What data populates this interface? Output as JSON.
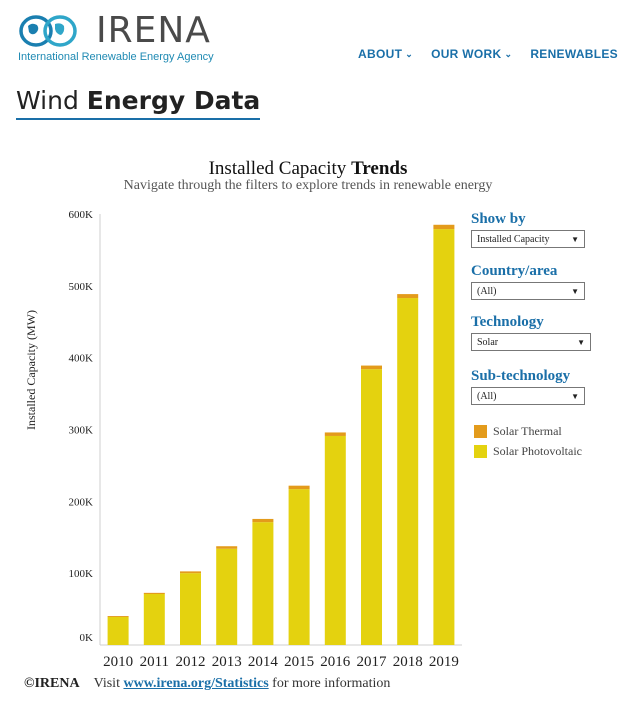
{
  "header": {
    "logo_word": "IRENA",
    "logo_subtitle": "International Renewable Energy Agency",
    "nav": [
      {
        "label": "ABOUT",
        "has_menu": true
      },
      {
        "label": "OUR WORK",
        "has_menu": true
      },
      {
        "label": "RENEWABLES",
        "has_menu": false
      }
    ]
  },
  "page": {
    "title_light": "Wind ",
    "title_bold": "Energy Data"
  },
  "filters": [
    {
      "label": "Show by",
      "value": "Installed Capacity"
    },
    {
      "label": "Country/area",
      "value": "(All)"
    },
    {
      "label": "Technology",
      "value": "Solar"
    },
    {
      "label": "Sub-technology",
      "value": "(All)"
    }
  ],
  "footer": {
    "copyright": "©IRENA",
    "text_before": "Visit ",
    "link": "www.irena.org/Statistics",
    "text_after": " for more information"
  },
  "colors": {
    "solar_thermal": "#e39b1b",
    "solar_photovoltaic": "#e4d20f",
    "accent": "#1a6fa8"
  },
  "chart_data": {
    "type": "bar",
    "stacked": true,
    "title_light": "Installed Capacity ",
    "title_bold": "Trends",
    "subtitle": "Navigate through the filters to explore trends in renewable energy",
    "ylabel": "Installed Capacity (MW)",
    "xlabel": "",
    "ylim": [
      0,
      600000
    ],
    "yticks": [
      0,
      100000,
      200000,
      300000,
      400000,
      500000,
      600000
    ],
    "ytick_labels": [
      "0K",
      "100K",
      "200K",
      "300K",
      "400K",
      "500K",
      "600K"
    ],
    "grid": false,
    "legend_position": "right",
    "categories": [
      "2010",
      "2011",
      "2012",
      "2013",
      "2014",
      "2015",
      "2016",
      "2017",
      "2018",
      "2019"
    ],
    "series": [
      {
        "name": "Solar Photovoltaic",
        "color": "#e4d20f",
        "values": [
          39000,
          71000,
          100000,
          134000,
          171000,
          217000,
          291000,
          384000,
          483000,
          579000
        ]
      },
      {
        "name": "Solar Thermal",
        "color": "#e39b1b",
        "values": [
          1300,
          1600,
          2500,
          3500,
          4500,
          4800,
          4900,
          5000,
          5500,
          6000
        ]
      }
    ]
  }
}
